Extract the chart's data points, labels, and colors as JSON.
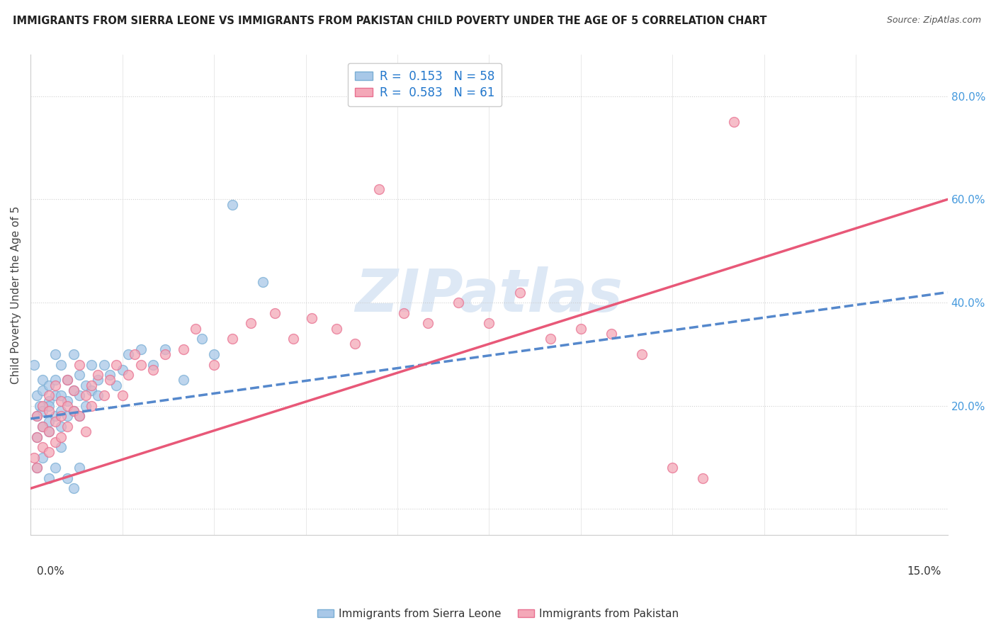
{
  "title": "IMMIGRANTS FROM SIERRA LEONE VS IMMIGRANTS FROM PAKISTAN CHILD POVERTY UNDER THE AGE OF 5 CORRELATION CHART",
  "source": "Source: ZipAtlas.com",
  "ylabel": "Child Poverty Under the Age of 5",
  "x_range": [
    0.0,
    0.15
  ],
  "y_range": [
    -0.05,
    0.88
  ],
  "sierra_leone_R": 0.153,
  "sierra_leone_N": 58,
  "pakistan_R": 0.583,
  "pakistan_N": 61,
  "sierra_leone_color": "#a8c8e8",
  "pakistan_color": "#f4a8b8",
  "sierra_leone_edge": "#7aaed4",
  "pakistan_edge": "#e87090",
  "sl_line_color": "#5588cc",
  "pk_line_color": "#e85878",
  "watermark": "ZIPatlas",
  "watermark_color": "#dde8f5",
  "y_ticks": [
    0.0,
    0.2,
    0.4,
    0.6,
    0.8
  ],
  "y_tick_labels": [
    "",
    "20.0%",
    "40.0%",
    "60.0%",
    "80.0%"
  ],
  "sl_trend_x0": 0.0,
  "sl_trend_y0": 0.175,
  "sl_trend_x1": 0.15,
  "sl_trend_y1": 0.42,
  "pk_trend_x0": 0.0,
  "pk_trend_y0": 0.04,
  "pk_trend_x1": 0.15,
  "pk_trend_y1": 0.6,
  "sierra_leone_x": [
    0.0005,
    0.001,
    0.001,
    0.001,
    0.0015,
    0.002,
    0.002,
    0.002,
    0.002,
    0.003,
    0.003,
    0.003,
    0.003,
    0.003,
    0.004,
    0.004,
    0.004,
    0.004,
    0.005,
    0.005,
    0.005,
    0.005,
    0.006,
    0.006,
    0.006,
    0.007,
    0.007,
    0.007,
    0.008,
    0.008,
    0.008,
    0.009,
    0.009,
    0.01,
    0.01,
    0.011,
    0.011,
    0.012,
    0.013,
    0.014,
    0.015,
    0.016,
    0.018,
    0.02,
    0.022,
    0.025,
    0.028,
    0.03,
    0.033,
    0.038,
    0.001,
    0.002,
    0.003,
    0.004,
    0.005,
    0.006,
    0.007,
    0.008
  ],
  "sierra_leone_y": [
    0.28,
    0.22,
    0.18,
    0.14,
    0.2,
    0.23,
    0.19,
    0.16,
    0.25,
    0.21,
    0.17,
    0.24,
    0.2,
    0.15,
    0.22,
    0.18,
    0.25,
    0.3,
    0.19,
    0.22,
    0.16,
    0.28,
    0.21,
    0.25,
    0.18,
    0.23,
    0.19,
    0.3,
    0.22,
    0.26,
    0.18,
    0.24,
    0.2,
    0.23,
    0.28,
    0.25,
    0.22,
    0.28,
    0.26,
    0.24,
    0.27,
    0.3,
    0.31,
    0.28,
    0.31,
    0.25,
    0.33,
    0.3,
    0.59,
    0.44,
    0.08,
    0.1,
    0.06,
    0.08,
    0.12,
    0.06,
    0.04,
    0.08
  ],
  "pakistan_x": [
    0.0005,
    0.001,
    0.001,
    0.001,
    0.002,
    0.002,
    0.002,
    0.003,
    0.003,
    0.003,
    0.003,
    0.004,
    0.004,
    0.004,
    0.005,
    0.005,
    0.005,
    0.006,
    0.006,
    0.006,
    0.007,
    0.007,
    0.008,
    0.008,
    0.009,
    0.009,
    0.01,
    0.01,
    0.011,
    0.012,
    0.013,
    0.014,
    0.015,
    0.016,
    0.017,
    0.018,
    0.02,
    0.022,
    0.025,
    0.027,
    0.03,
    0.033,
    0.036,
    0.04,
    0.043,
    0.046,
    0.05,
    0.053,
    0.057,
    0.061,
    0.065,
    0.07,
    0.075,
    0.08,
    0.085,
    0.09,
    0.095,
    0.1,
    0.105,
    0.11,
    0.115
  ],
  "pakistan_y": [
    0.1,
    0.18,
    0.14,
    0.08,
    0.16,
    0.12,
    0.2,
    0.15,
    0.19,
    0.11,
    0.22,
    0.17,
    0.13,
    0.24,
    0.18,
    0.14,
    0.21,
    0.2,
    0.16,
    0.25,
    0.19,
    0.23,
    0.18,
    0.28,
    0.22,
    0.15,
    0.24,
    0.2,
    0.26,
    0.22,
    0.25,
    0.28,
    0.22,
    0.26,
    0.3,
    0.28,
    0.27,
    0.3,
    0.31,
    0.35,
    0.28,
    0.33,
    0.36,
    0.38,
    0.33,
    0.37,
    0.35,
    0.32,
    0.62,
    0.38,
    0.36,
    0.4,
    0.36,
    0.42,
    0.33,
    0.35,
    0.34,
    0.3,
    0.08,
    0.06,
    0.75
  ]
}
